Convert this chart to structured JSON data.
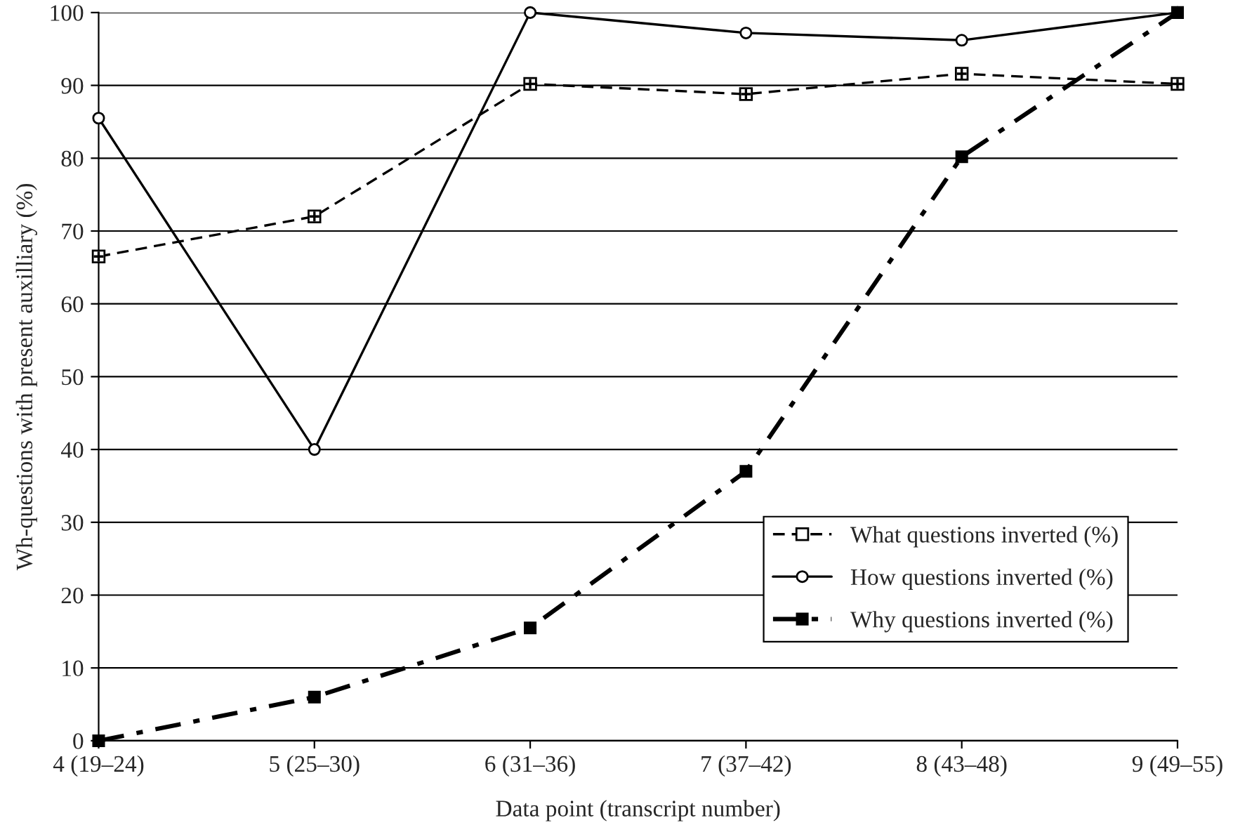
{
  "chart_data": {
    "type": "line",
    "xlabel": "Data point (transcript number)",
    "ylabel": "Wh-questions with present auxilliary (%)",
    "categories": [
      "4 (19–24)",
      "5 (25–30)",
      "6 (31–36)",
      "7 (37–42)",
      "8 (43–48)",
      "9 (49–55)"
    ],
    "series": [
      {
        "name": "What questions inverted (%)",
        "color": "#000000",
        "marker": "square",
        "line_style": "dashed",
        "values": [
          66.5,
          72,
          90.2,
          88.8,
          91.6,
          90.2
        ]
      },
      {
        "name": "How questions inverted (%)",
        "color": "#000000",
        "marker": "circle",
        "line_style": "solid",
        "values": [
          85.5,
          40,
          100,
          97.2,
          96.2,
          100
        ]
      },
      {
        "name": "Why questions inverted (%)",
        "color": "#000000",
        "marker": "square",
        "line_style": "dashdot",
        "values": [
          0,
          6,
          15.5,
          37,
          80.2,
          100
        ]
      }
    ],
    "ylim": [
      0,
      100
    ],
    "yticks": [
      0,
      10,
      20,
      30,
      40,
      50,
      60,
      70,
      80,
      90,
      100
    ],
    "grid": "y",
    "legend": "bottom right"
  }
}
